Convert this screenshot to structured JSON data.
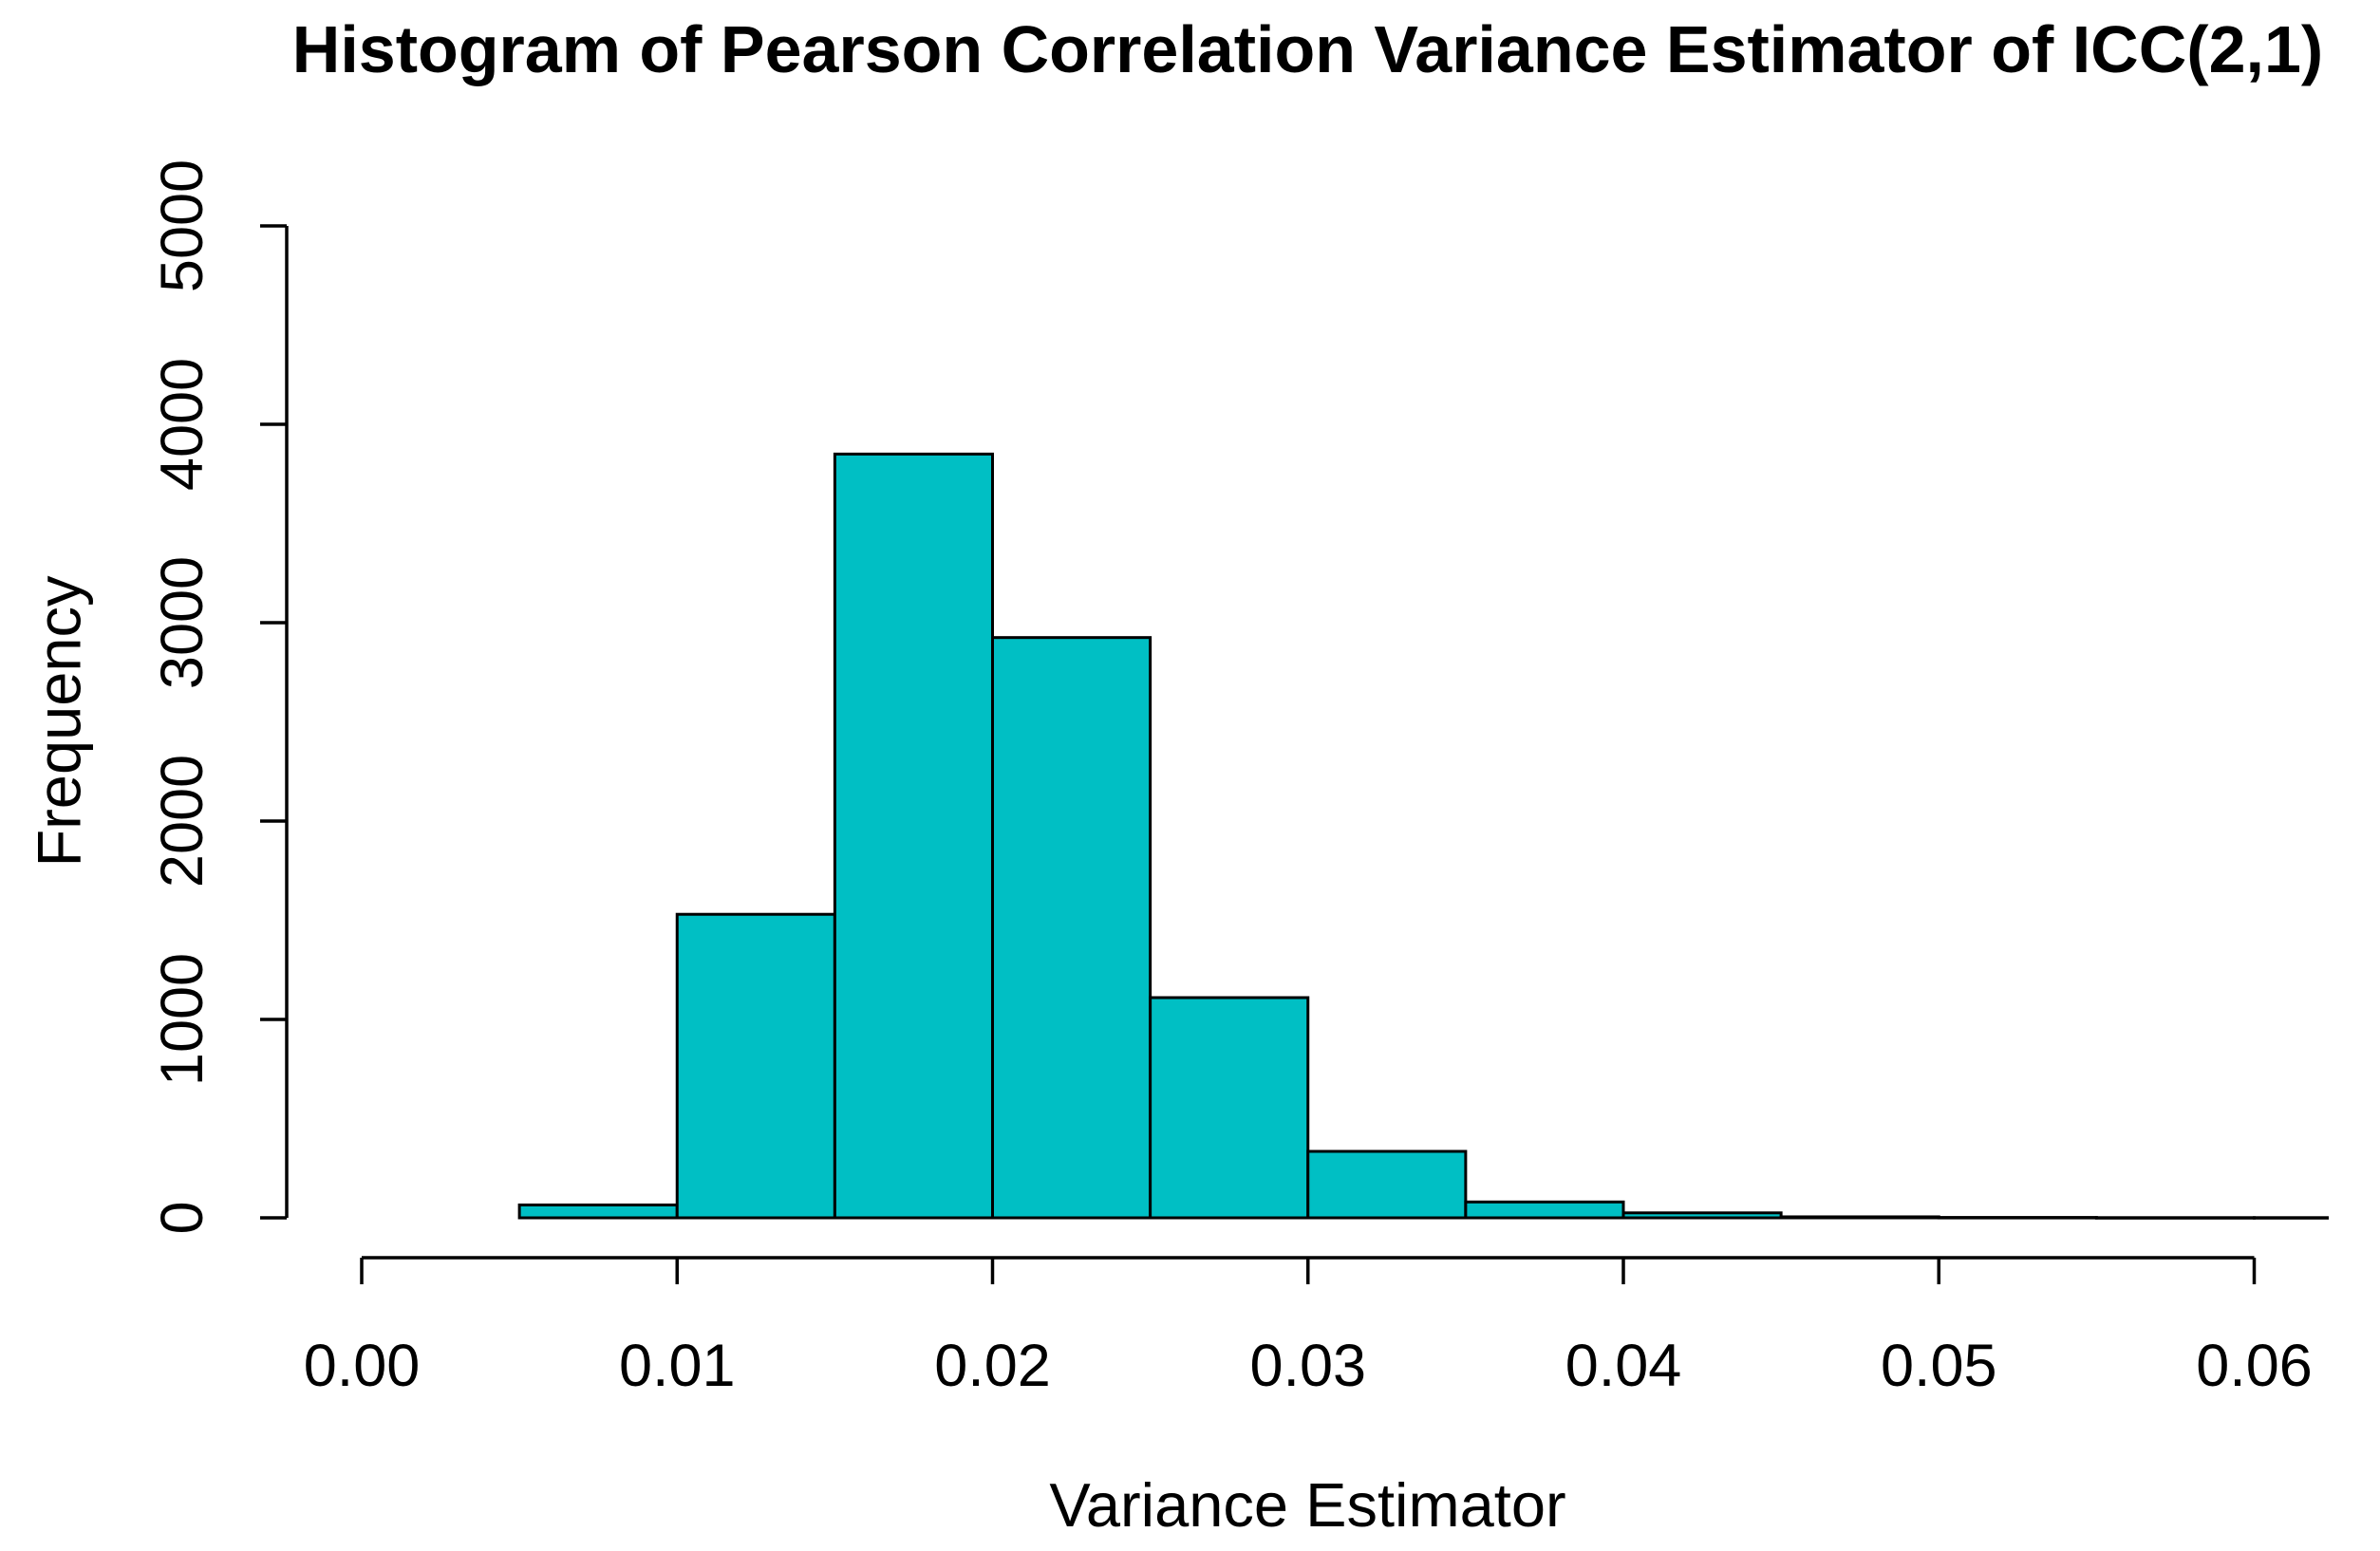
{
  "chart_data": {
    "type": "histogram",
    "title": "Histogram of Pearson Correlation Variance Estimator of ICC(2,1)",
    "xlabel": "Variance Estimator",
    "ylabel": "Frequency",
    "bin_width": 0.005,
    "bin_edges": [
      0.005,
      0.01,
      0.015,
      0.02,
      0.025,
      0.03,
      0.035,
      0.04,
      0.045,
      0.05,
      0.055,
      0.06,
      0.065
    ],
    "counts": [
      65,
      1530,
      3850,
      2925,
      1110,
      335,
      80,
      25,
      5,
      2,
      1,
      1
    ],
    "x_tick_values": [
      0.0,
      0.01,
      0.02,
      0.03,
      0.04,
      0.05,
      0.06
    ],
    "x_tick_labels": [
      "0.00",
      "0.01",
      "0.02",
      "0.03",
      "0.04",
      "0.05",
      "0.06"
    ],
    "y_tick_values": [
      0,
      1000,
      2000,
      3000,
      4000,
      5000
    ],
    "y_tick_labels": [
      "0",
      "1000",
      "2000",
      "3000",
      "4000",
      "5000"
    ],
    "xlim": [
      0.0,
      0.06
    ],
    "ylim": [
      0,
      5000
    ],
    "grid": "off",
    "legend": "none",
    "bar_fill": "#00BFC4",
    "bar_stroke": "#000000",
    "axis_color": "#000000",
    "background": "#FFFFFF"
  }
}
